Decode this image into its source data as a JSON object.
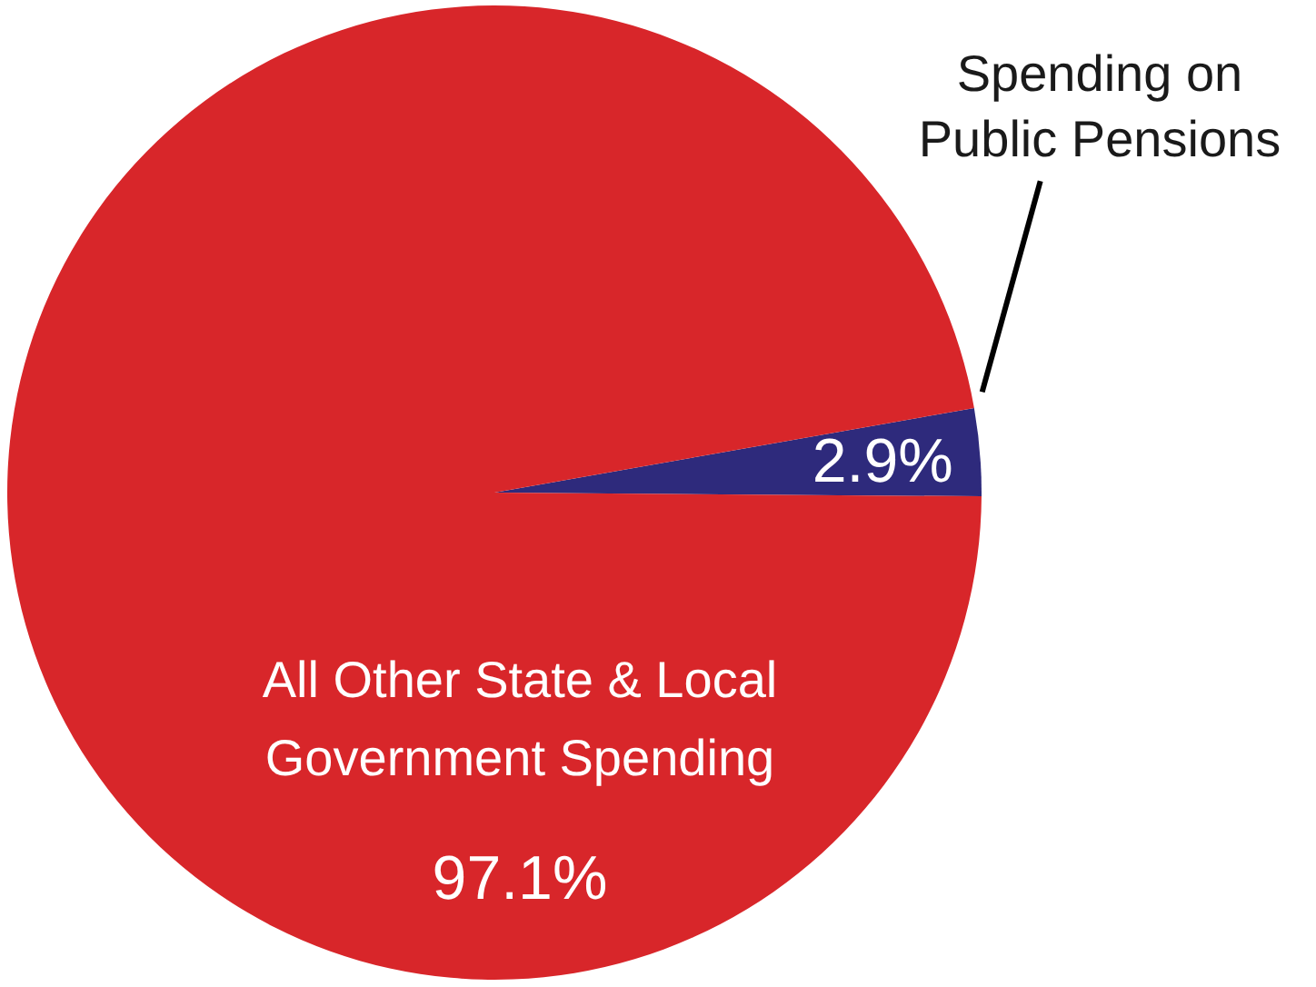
{
  "chart_data": {
    "type": "pie",
    "categories": [
      "Spending on Public Pensions",
      "All Other State & Local Government Spending"
    ],
    "values": [
      2.9,
      97.1
    ],
    "colors": [
      "#2e2a7c",
      "#d8262a"
    ],
    "value_labels": [
      "2.9%",
      "97.1%"
    ]
  }
}
